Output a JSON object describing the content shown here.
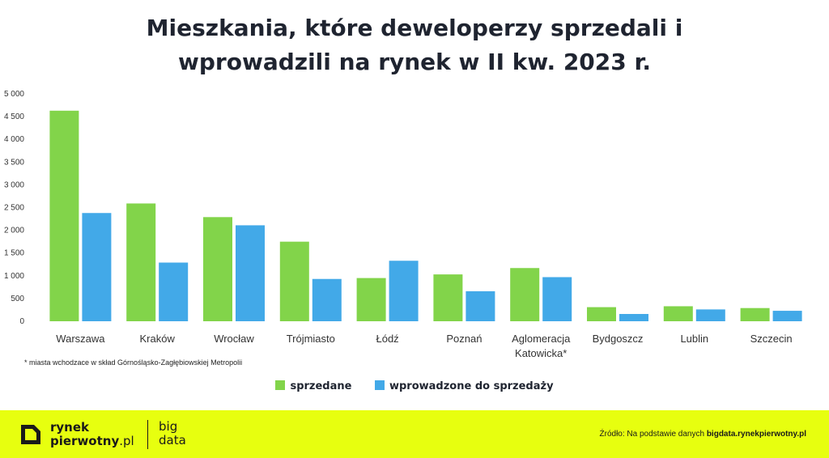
{
  "chart_data": {
    "type": "bar",
    "title_lines": [
      "Mieszkania, które deweloperzy sprzedali i",
      "wprowadzili na rynek w II kw. 2023 r."
    ],
    "categories": [
      [
        "Warszawa"
      ],
      [
        "Kraków"
      ],
      [
        "Wrocław"
      ],
      [
        "Trójmiasto"
      ],
      [
        "Łódź"
      ],
      [
        "Poznań"
      ],
      [
        "Aglomeracja",
        "Katowicka*"
      ],
      [
        "Bydgoszcz"
      ],
      [
        "Lublin"
      ],
      [
        "Szczecin"
      ]
    ],
    "series": [
      {
        "name": "sprzedane",
        "color": "#82d44a",
        "values": [
          4630,
          2590,
          2290,
          1750,
          950,
          1030,
          1170,
          310,
          330,
          290
        ]
      },
      {
        "name": "wprowadzone do sprzedaży",
        "color": "#42a9e8",
        "values": [
          2380,
          1290,
          2110,
          930,
          1330,
          660,
          970,
          160,
          260,
          230
        ]
      }
    ],
    "ylim": [
      0,
      5000
    ],
    "yticks": [
      0,
      500,
      1000,
      1500,
      2000,
      2500,
      3000,
      3500,
      4000,
      4500,
      5000
    ],
    "ytick_labels": [
      "0",
      "500",
      "1 000",
      "1 500",
      "2 000",
      "2 500",
      "3 000",
      "3 500",
      "4 000",
      "4 500",
      "5 000"
    ],
    "grid": false,
    "legend_placement": "bottom-center"
  },
  "footnote": "* miasta wchodzace w skład Górnośląsko-Zagłębiowskiej Metropolii",
  "footer": {
    "brand_line1": "rynek",
    "brand_line2_bold": "pierwotny",
    "brand_line2_light": ".pl",
    "big_data_line1": "big",
    "big_data_line2": "data",
    "source_prefix": "Źródło: Na podstawie danych",
    "source_link": "bigdata.rynekpierwotny.pl",
    "accent_color": "#e7ff0f"
  }
}
